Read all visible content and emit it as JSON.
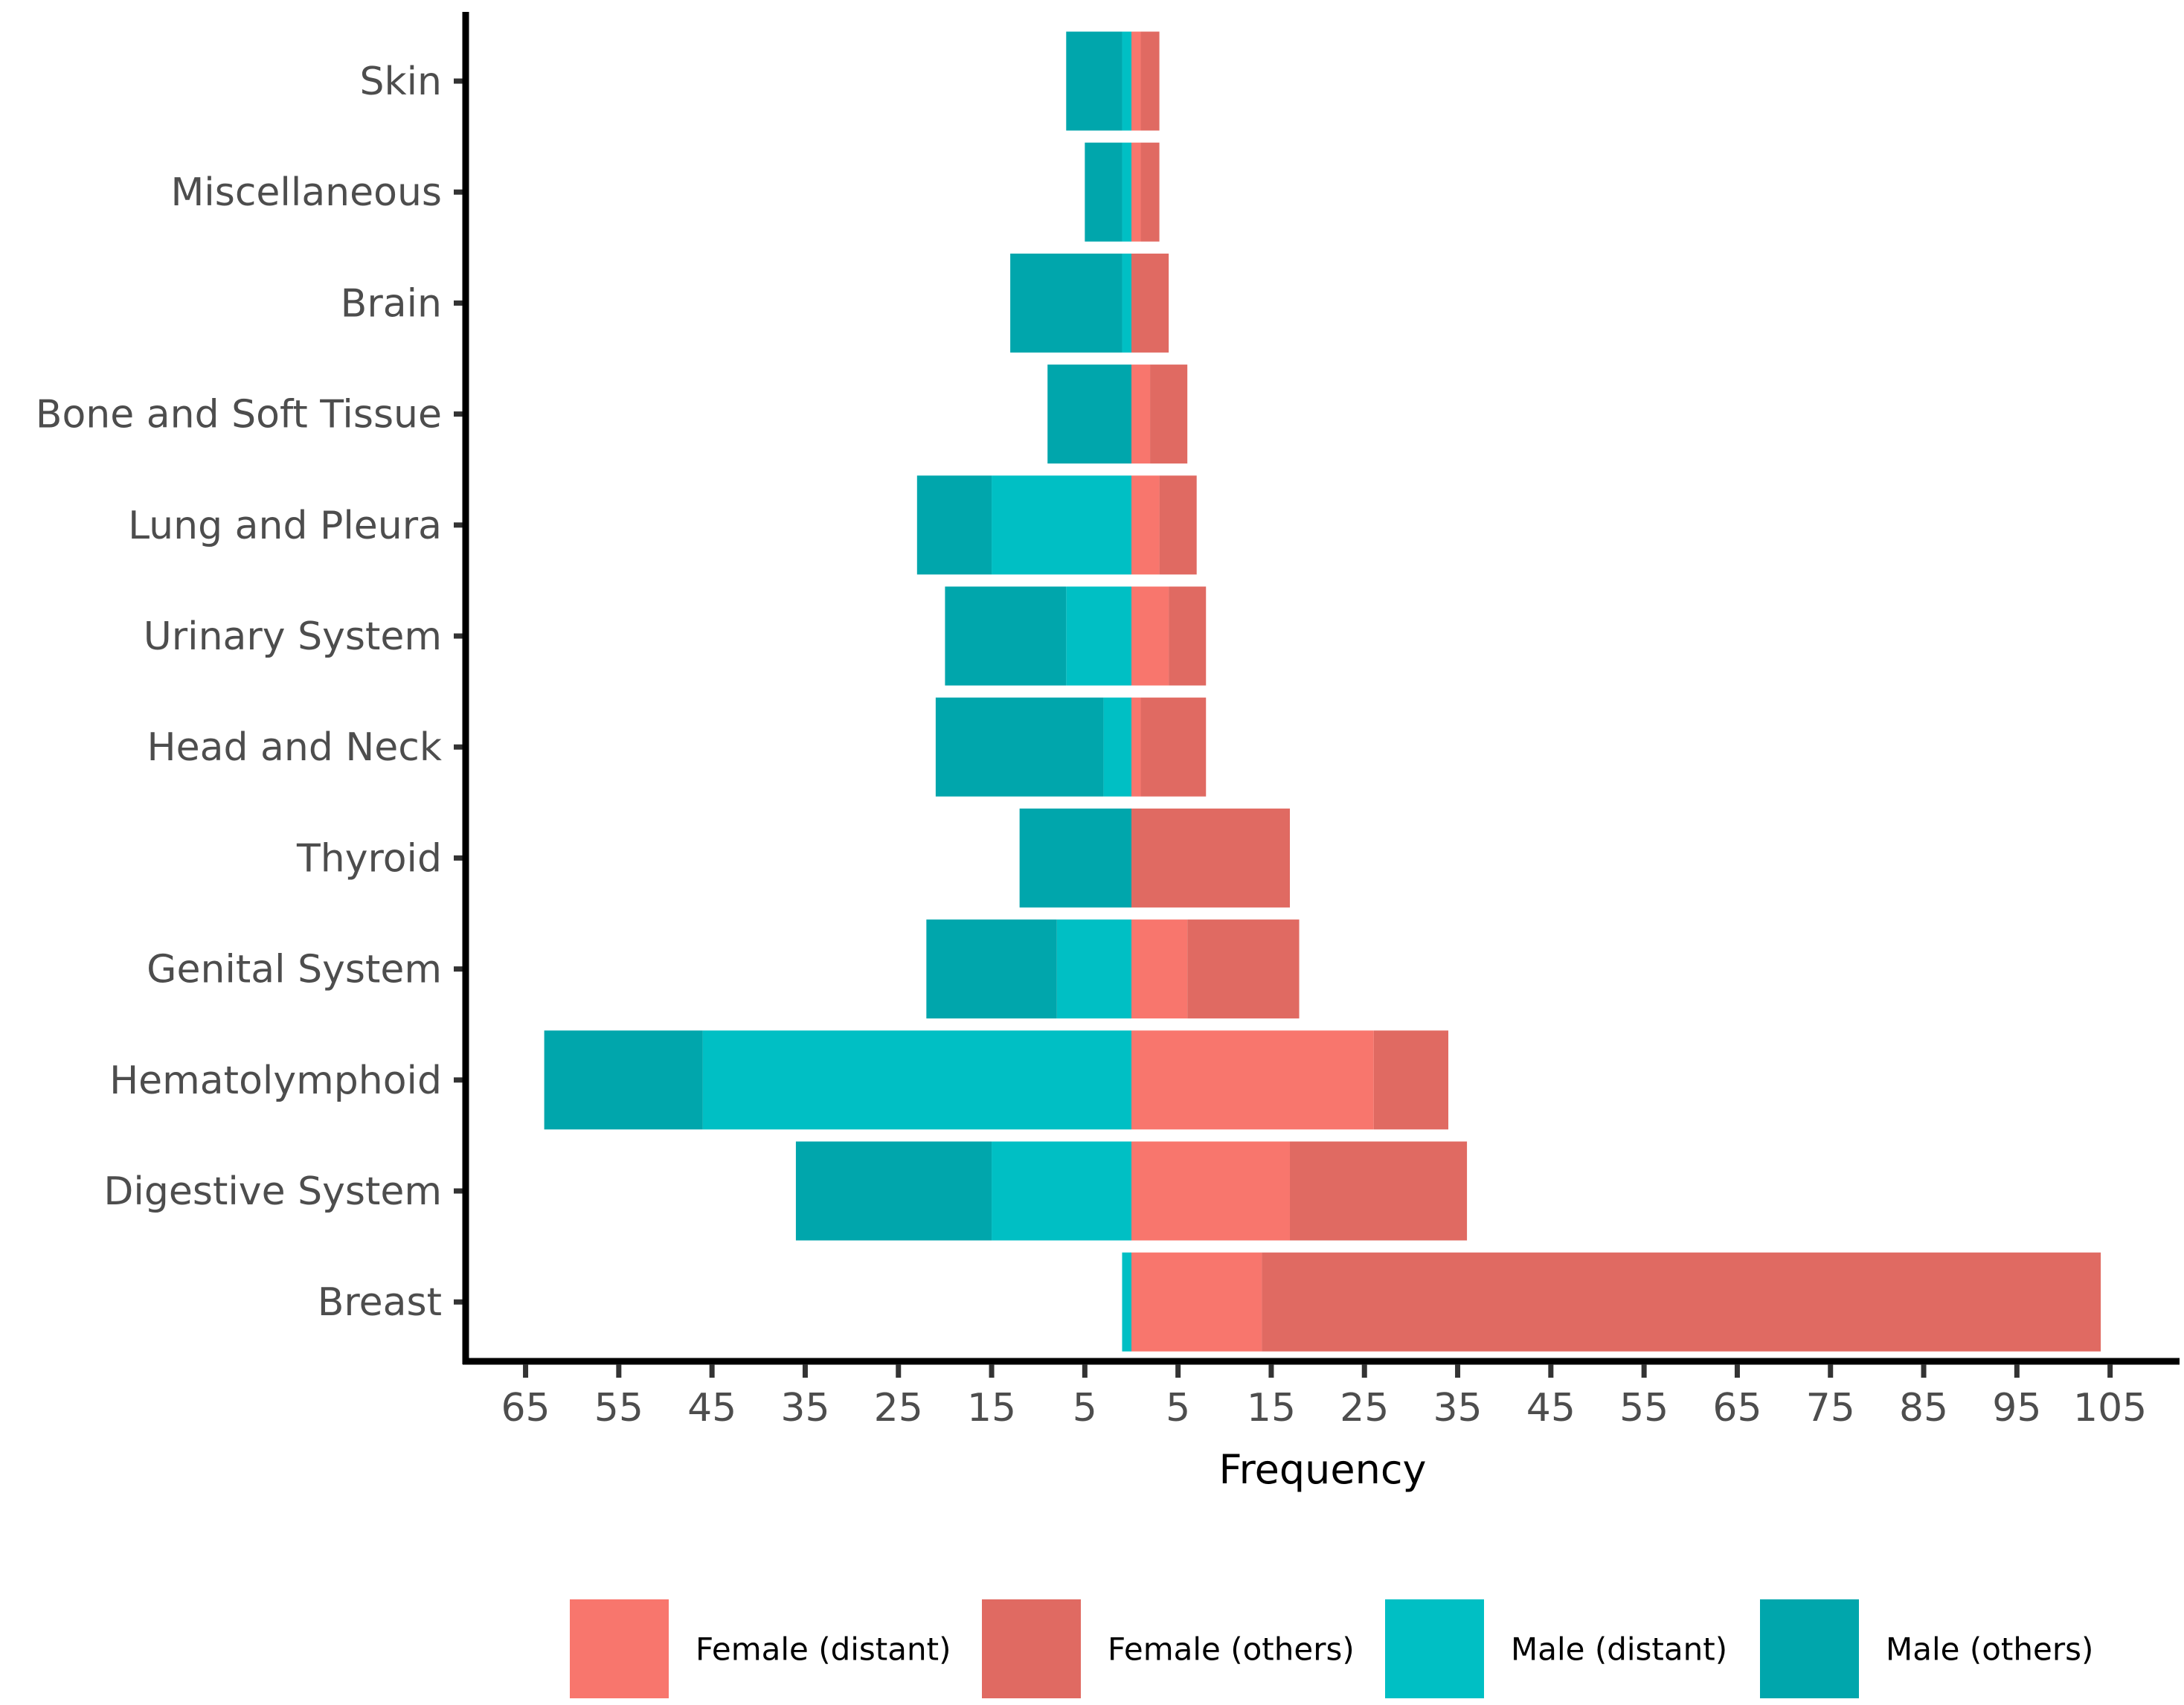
{
  "chart_data": {
    "type": "bar",
    "orientation": "horizontal",
    "stacked": true,
    "diverging": true,
    "title": "",
    "xlabel": "Frequency",
    "ylabel": "",
    "xlim": [
      -65,
      105
    ],
    "x_tick_values": [
      -65,
      -55,
      -45,
      -35,
      -25,
      -15,
      -5,
      5,
      15,
      25,
      35,
      45,
      55,
      65,
      75,
      85,
      95,
      105
    ],
    "x_tick_labels": [
      "65",
      "55",
      "45",
      "35",
      "25",
      "15",
      "5",
      "5",
      "15",
      "25",
      "35",
      "45",
      "55",
      "65",
      "75",
      "85",
      "95",
      "105"
    ],
    "categories": [
      "Skin",
      "Miscellaneous",
      "Brain",
      "Bone and Soft Tissue",
      "Lung and Pleura",
      "Urinary System",
      "Head and Neck",
      "Thyroid",
      "Genital System",
      "Hematolymphoid",
      "Digestive System",
      "Breast"
    ],
    "series": [
      {
        "name": "Female (distant)",
        "side": "right",
        "color": "#F8766D",
        "values": [
          1,
          1,
          0,
          2,
          3,
          4,
          1,
          0,
          6,
          26,
          17,
          14
        ]
      },
      {
        "name": "Female (others)",
        "side": "right",
        "color": "#E06A62",
        "values": [
          2,
          2,
          4,
          4,
          4,
          4,
          7,
          17,
          12,
          8,
          19,
          90
        ]
      },
      {
        "name": "Male (distant)",
        "side": "left",
        "color": "#00BFC4",
        "values": [
          1,
          1,
          1,
          0,
          15,
          7,
          3,
          0,
          8,
          46,
          15,
          1
        ]
      },
      {
        "name": "Male (others)",
        "side": "left",
        "color": "#00A6AC",
        "values": [
          6,
          4,
          12,
          9,
          8,
          13,
          18,
          12,
          14,
          17,
          21,
          0
        ]
      }
    ],
    "legend": {
      "position": "bottom",
      "entries": [
        "Female (distant)",
        "Female (others)",
        "Male (distant)",
        "Male (others)"
      ]
    },
    "grid": false
  }
}
